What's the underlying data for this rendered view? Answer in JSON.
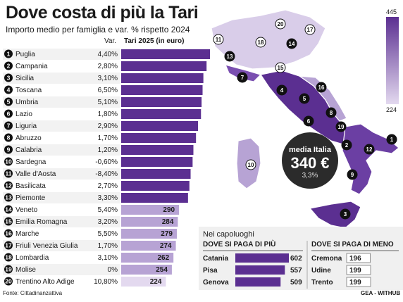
{
  "title": "Dove costa di più la Tari",
  "subtitle": "Importo medio per famiglia e var. % rispetto 2024",
  "header_var": "Var.",
  "header_tari": "Tari 2025 (in euro)",
  "source": "Fonte: Cittadinanzattiva",
  "credit": "GEA - WITHUB",
  "colors": {
    "bar_dark": "#5b2f91",
    "bar_mid": "#b7a3d4",
    "bar_light": "#e3d9ef",
    "badge": "#111111",
    "media_circle": "#2b2b2b"
  },
  "media": {
    "label": "media Italia",
    "value": "340 €",
    "variation": "3,3%"
  },
  "scale": {
    "max": "445",
    "min": "224"
  },
  "chart_data": [
    {
      "type": "bar",
      "title": "Dove costa di più la Tari",
      "subtitle": "Importo medio per famiglia e var. % rispetto 2024",
      "categories": [
        "Puglia",
        "Campania",
        "Sicilia",
        "Toscana",
        "Umbria",
        "Lazio",
        "Liguria",
        "Abruzzo",
        "Calabria",
        "Sardegna",
        "Valle d'Aosta",
        "Basilicata",
        "Piemonte",
        "Veneto",
        "Emilia Romagna",
        "Marche",
        "Friuli Venezia Giulia",
        "Lombardia",
        "Molise",
        "Trentino Alto Adige"
      ],
      "ranks": [
        "1",
        "2",
        "3",
        "4",
        "5",
        "6",
        "7",
        "8",
        "9",
        "10",
        "11",
        "12",
        "13",
        "14",
        "15",
        "16",
        "17",
        "18",
        "19",
        "20"
      ],
      "variations": [
        "4,40%",
        "2,80%",
        "3,10%",
        "6,50%",
        "5,10%",
        "1,80%",
        "2,90%",
        "1,70%",
        "1,20%",
        "-0,60%",
        "-8,40%",
        "2,70%",
        "3,30%",
        "5,40%",
        "3,20%",
        "5,50%",
        "1,70%",
        "3,10%",
        "0%",
        "10,80%"
      ],
      "values": [
        445,
        428,
        412,
        408,
        403,
        400,
        385,
        375,
        362,
        358,
        348,
        342,
        335,
        290,
        284,
        279,
        274,
        262,
        254,
        224
      ],
      "value_labels": [
        "",
        "",
        "",
        "",
        "",
        "",
        "",
        "",
        "",
        "",
        "",
        "",
        "",
        "290",
        "284",
        "279",
        "274",
        "262",
        "254",
        "224"
      ],
      "xlim": [
        0,
        445
      ]
    },
    {
      "type": "bar",
      "title": "DOVE SI PAGA DI PIÙ",
      "group_label": "Nei capoluoghi",
      "categories": [
        "Catania",
        "Pisa",
        "Genova"
      ],
      "values": [
        602,
        557,
        509
      ],
      "value_labels": [
        "602",
        "557",
        "509"
      ]
    },
    {
      "type": "bar",
      "title": "DOVE SI PAGA DI MENO",
      "categories": [
        "Cremona",
        "Udine",
        "Trento"
      ],
      "values": [
        196,
        199,
        199
      ],
      "value_labels": [
        "196",
        "199",
        "199"
      ]
    }
  ]
}
